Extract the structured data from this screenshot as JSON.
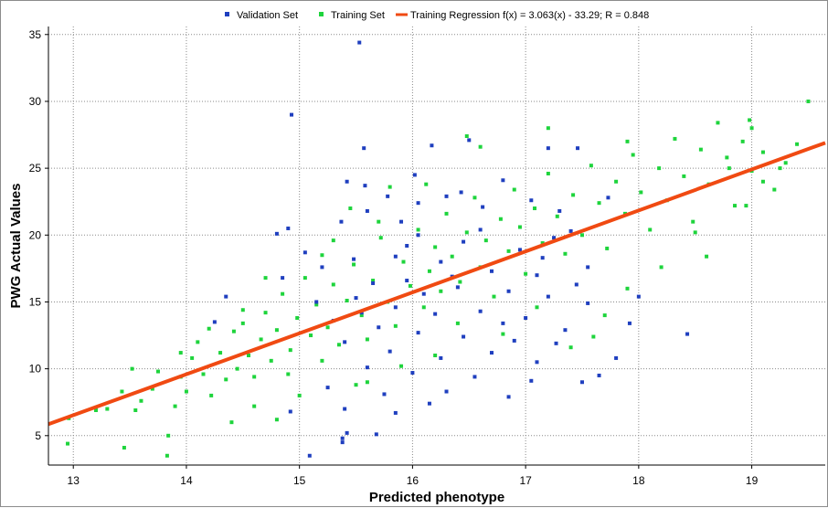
{
  "chart_data": {
    "type": "scatter",
    "xlabel": "Predicted phenotype",
    "ylabel": "PWG Actual Values",
    "xlim": [
      12.78,
      19.65
    ],
    "ylim": [
      2.8,
      35.6
    ],
    "x_ticks": [
      13,
      14,
      15,
      16,
      17,
      18,
      19
    ],
    "y_ticks": [
      5,
      10,
      15,
      20,
      25,
      30,
      35
    ],
    "grid": true,
    "legend_position": "top",
    "legend": {
      "validation": "Validation Set",
      "training": "Training Set",
      "regression": "Training Regression f(x) = 3.063(x) - 33.29; R = 0.848"
    },
    "colors": {
      "validation": "#1f3fbf",
      "training": "#1ed43c",
      "regression": "#f04a12"
    },
    "regression": {
      "slope": 3.063,
      "intercept": -33.29,
      "x_range": [
        12.78,
        19.65
      ]
    },
    "series": [
      {
        "name": "Validation Set",
        "points": [
          [
            15.53,
            34.4
          ],
          [
            14.93,
            29.0
          ],
          [
            15.57,
            26.5
          ],
          [
            16.17,
            26.7
          ],
          [
            16.5,
            27.1
          ],
          [
            17.2,
            26.5
          ],
          [
            17.46,
            26.5
          ],
          [
            16.43,
            23.2
          ],
          [
            15.42,
            24.0
          ],
          [
            15.58,
            23.7
          ],
          [
            16.8,
            24.1
          ],
          [
            14.9,
            20.5
          ],
          [
            14.8,
            20.1
          ],
          [
            15.05,
            18.7
          ],
          [
            15.37,
            21.0
          ],
          [
            15.6,
            21.8
          ],
          [
            16.05,
            22.4
          ],
          [
            16.3,
            22.9
          ],
          [
            16.62,
            22.1
          ],
          [
            17.05,
            22.6
          ],
          [
            17.3,
            21.8
          ],
          [
            17.73,
            22.8
          ],
          [
            16.05,
            20.0
          ],
          [
            16.45,
            19.5
          ],
          [
            16.95,
            18.9
          ],
          [
            17.25,
            19.8
          ],
          [
            17.55,
            17.6
          ],
          [
            15.2,
            17.6
          ],
          [
            15.48,
            18.2
          ],
          [
            15.85,
            18.4
          ],
          [
            16.25,
            18.0
          ],
          [
            16.7,
            17.3
          ],
          [
            17.1,
            17.0
          ],
          [
            17.45,
            16.3
          ],
          [
            15.65,
            16.4
          ],
          [
            15.95,
            16.6
          ],
          [
            16.35,
            16.9
          ],
          [
            16.85,
            15.8
          ],
          [
            17.2,
            15.4
          ],
          [
            17.55,
            14.9
          ],
          [
            15.15,
            15.0
          ],
          [
            15.5,
            15.3
          ],
          [
            15.85,
            14.6
          ],
          [
            16.2,
            14.1
          ],
          [
            16.6,
            14.3
          ],
          [
            17.0,
            13.8
          ],
          [
            17.35,
            12.9
          ],
          [
            15.3,
            13.6
          ],
          [
            15.7,
            13.1
          ],
          [
            16.05,
            12.7
          ],
          [
            16.45,
            12.4
          ],
          [
            16.9,
            12.1
          ],
          [
            15.4,
            12.0
          ],
          [
            15.8,
            11.3
          ],
          [
            16.25,
            10.8
          ],
          [
            16.7,
            11.2
          ],
          [
            17.1,
            10.5
          ],
          [
            15.6,
            10.1
          ],
          [
            16.0,
            9.7
          ],
          [
            16.55,
            9.4
          ],
          [
            17.05,
            9.1
          ],
          [
            15.25,
            8.6
          ],
          [
            15.75,
            8.1
          ],
          [
            16.15,
            7.4
          ],
          [
            15.4,
            7.0
          ],
          [
            15.85,
            6.7
          ],
          [
            14.92,
            6.8
          ],
          [
            15.42,
            5.2
          ],
          [
            15.38,
            4.8
          ],
          [
            15.09,
            3.5
          ],
          [
            15.38,
            4.5
          ],
          [
            15.68,
            5.1
          ],
          [
            16.3,
            8.3
          ],
          [
            16.85,
            7.9
          ],
          [
            17.5,
            9.0
          ],
          [
            17.8,
            10.8
          ],
          [
            17.92,
            13.4
          ],
          [
            18.0,
            15.4
          ],
          [
            18.43,
            12.6
          ],
          [
            17.65,
            9.5
          ],
          [
            15.9,
            21.0
          ],
          [
            16.6,
            20.4
          ],
          [
            17.4,
            20.3
          ],
          [
            17.15,
            18.3
          ],
          [
            16.1,
            15.6
          ],
          [
            15.55,
            14.2
          ],
          [
            16.8,
            13.4
          ],
          [
            17.27,
            11.9
          ],
          [
            15.95,
            19.2
          ],
          [
            16.4,
            16.1
          ],
          [
            14.35,
            15.4
          ],
          [
            14.85,
            16.8
          ],
          [
            14.25,
            13.5
          ],
          [
            16.02,
            24.5
          ],
          [
            15.78,
            22.9
          ]
        ]
      },
      {
        "name": "Training Set",
        "points": [
          [
            12.95,
            4.4
          ],
          [
            12.96,
            6.3
          ],
          [
            13.2,
            6.9
          ],
          [
            13.45,
            4.1
          ],
          [
            13.43,
            8.3
          ],
          [
            13.52,
            10.0
          ],
          [
            13.6,
            7.6
          ],
          [
            13.7,
            8.5
          ],
          [
            13.83,
            3.5
          ],
          [
            13.84,
            5.0
          ],
          [
            13.3,
            7.0
          ],
          [
            13.55,
            6.9
          ],
          [
            13.9,
            7.2
          ],
          [
            13.95,
            9.4
          ],
          [
            14.0,
            8.3
          ],
          [
            14.05,
            10.8
          ],
          [
            14.1,
            12.0
          ],
          [
            14.15,
            9.6
          ],
          [
            14.22,
            8.0
          ],
          [
            14.3,
            11.2
          ],
          [
            14.35,
            9.2
          ],
          [
            14.42,
            12.8
          ],
          [
            14.45,
            10.0
          ],
          [
            14.5,
            13.4
          ],
          [
            14.55,
            11.0
          ],
          [
            14.6,
            9.4
          ],
          [
            14.66,
            12.2
          ],
          [
            14.7,
            14.2
          ],
          [
            14.75,
            10.6
          ],
          [
            14.8,
            12.9
          ],
          [
            14.85,
            15.6
          ],
          [
            14.92,
            11.4
          ],
          [
            14.98,
            13.8
          ],
          [
            15.05,
            16.8
          ],
          [
            15.1,
            12.5
          ],
          [
            15.15,
            14.8
          ],
          [
            15.2,
            18.5
          ],
          [
            15.25,
            13.1
          ],
          [
            15.3,
            16.3
          ],
          [
            15.35,
            11.8
          ],
          [
            15.42,
            15.1
          ],
          [
            15.48,
            17.8
          ],
          [
            15.55,
            14.0
          ],
          [
            15.6,
            12.2
          ],
          [
            15.65,
            16.6
          ],
          [
            15.72,
            19.8
          ],
          [
            15.78,
            15.0
          ],
          [
            15.85,
            13.2
          ],
          [
            15.92,
            18.0
          ],
          [
            15.98,
            16.2
          ],
          [
            16.05,
            20.4
          ],
          [
            16.1,
            14.6
          ],
          [
            16.15,
            17.3
          ],
          [
            16.2,
            19.1
          ],
          [
            16.25,
            15.8
          ],
          [
            16.3,
            21.6
          ],
          [
            16.35,
            18.4
          ],
          [
            16.42,
            16.5
          ],
          [
            16.48,
            20.2
          ],
          [
            16.55,
            22.8
          ],
          [
            16.6,
            17.6
          ],
          [
            16.65,
            19.6
          ],
          [
            16.72,
            15.4
          ],
          [
            16.78,
            21.2
          ],
          [
            16.85,
            18.8
          ],
          [
            16.9,
            23.4
          ],
          [
            16.95,
            20.6
          ],
          [
            17.0,
            17.1
          ],
          [
            17.08,
            22.0
          ],
          [
            17.15,
            19.4
          ],
          [
            17.2,
            24.6
          ],
          [
            17.28,
            21.4
          ],
          [
            17.35,
            18.6
          ],
          [
            17.42,
            23.0
          ],
          [
            17.5,
            20.0
          ],
          [
            17.58,
            25.2
          ],
          [
            17.65,
            22.4
          ],
          [
            17.72,
            19.0
          ],
          [
            17.8,
            24.0
          ],
          [
            17.88,
            21.6
          ],
          [
            17.95,
            26.0
          ],
          [
            18.02,
            23.2
          ],
          [
            18.1,
            20.4
          ],
          [
            18.18,
            25.0
          ],
          [
            18.25,
            22.6
          ],
          [
            18.32,
            27.2
          ],
          [
            18.4,
            24.4
          ],
          [
            18.48,
            21.0
          ],
          [
            18.55,
            26.4
          ],
          [
            18.62,
            23.8
          ],
          [
            18.7,
            28.4
          ],
          [
            18.78,
            25.8
          ],
          [
            18.85,
            22.2
          ],
          [
            18.92,
            27.0
          ],
          [
            19.0,
            24.8
          ],
          [
            19.1,
            26.2
          ],
          [
            19.2,
            23.4
          ],
          [
            19.3,
            25.4
          ],
          [
            19.4,
            26.8
          ],
          [
            19.5,
            30.0
          ],
          [
            18.98,
            28.6
          ],
          [
            19.0,
            28.0
          ],
          [
            18.95,
            22.2
          ],
          [
            18.5,
            20.2
          ],
          [
            18.2,
            17.6
          ],
          [
            18.6,
            18.4
          ],
          [
            17.9,
            16.0
          ],
          [
            17.7,
            14.0
          ],
          [
            17.4,
            11.6
          ],
          [
            17.6,
            12.4
          ],
          [
            16.2,
            11.0
          ],
          [
            15.9,
            10.2
          ],
          [
            15.6,
            9.0
          ],
          [
            15.2,
            10.6
          ],
          [
            14.9,
            9.6
          ],
          [
            14.6,
            7.2
          ],
          [
            14.8,
            6.2
          ],
          [
            14.4,
            6.0
          ],
          [
            15.0,
            8.0
          ],
          [
            15.5,
            8.8
          ],
          [
            16.48,
            27.4
          ],
          [
            16.6,
            26.6
          ],
          [
            17.2,
            28.0
          ],
          [
            15.45,
            22.0
          ],
          [
            15.7,
            21.0
          ],
          [
            14.7,
            16.8
          ],
          [
            14.5,
            14.4
          ],
          [
            14.2,
            13.0
          ],
          [
            13.95,
            11.2
          ],
          [
            13.75,
            9.8
          ],
          [
            16.4,
            13.4
          ],
          [
            16.8,
            12.6
          ],
          [
            17.1,
            14.6
          ],
          [
            15.3,
            19.6
          ],
          [
            15.8,
            23.6
          ],
          [
            16.12,
            23.8
          ],
          [
            17.9,
            27.0
          ],
          [
            18.8,
            25.0
          ],
          [
            19.1,
            24.0
          ],
          [
            19.25,
            25.0
          ]
        ]
      }
    ]
  }
}
